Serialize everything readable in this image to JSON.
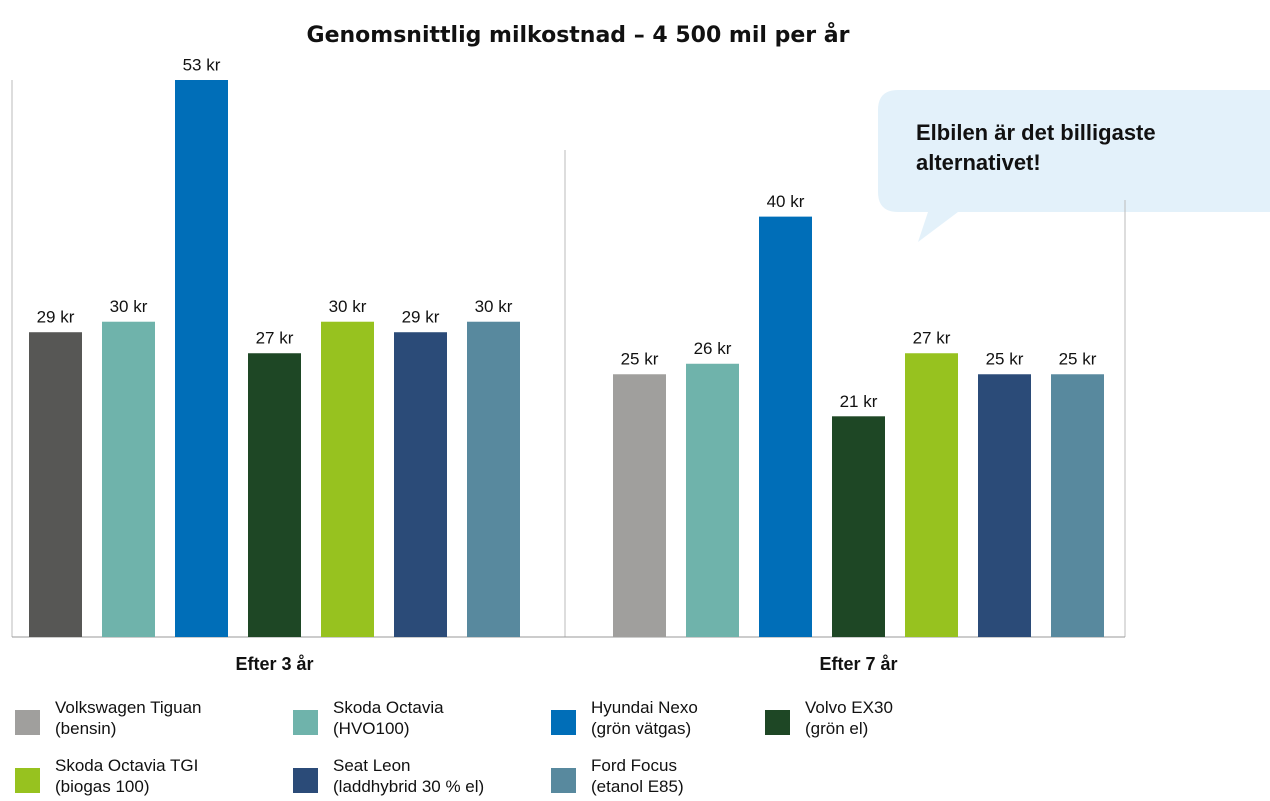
{
  "chart_data": {
    "type": "bar",
    "title": "Genomsnittlig milkostnad – 4 500 mil per år",
    "categories": [
      "Efter 3 år",
      "Efter 7 år"
    ],
    "ylim": [
      0,
      53
    ],
    "annotation": "Elbilen är det billigaste alternativet!",
    "series": [
      {
        "name": "Volkswagen Tiguan\n(bensin)",
        "color": "#a09f9d",
        "bar_colors": [
          "#575755",
          "#a09f9d"
        ],
        "values": [
          29,
          25
        ],
        "value_labels": [
          "29 kr",
          "25 kr"
        ]
      },
      {
        "name": "Skoda Octavia\n(HVO100)",
        "color": "#6fb3ab",
        "values": [
          30,
          26
        ],
        "value_labels": [
          "30 kr",
          "26 kr"
        ]
      },
      {
        "name": "Hyundai Nexo\n(grön vätgas)",
        "color": "#006eb8",
        "values": [
          53,
          40
        ],
        "value_labels": [
          "53 kr",
          "40 kr"
        ]
      },
      {
        "name": "Volvo EX30\n(grön el)",
        "color": "#1e4725",
        "values": [
          27,
          21
        ],
        "value_labels": [
          "27 kr",
          "21 kr"
        ]
      },
      {
        "name": "Skoda Octavia TGI\n(biogas 100)",
        "color": "#97c21f",
        "values": [
          30,
          27
        ],
        "value_labels": [
          "30 kr",
          "27 kr"
        ]
      },
      {
        "name": "Seat Leon\n(laddhybrid 30 % el)",
        "color": "#2b4b78",
        "values": [
          29,
          25
        ],
        "value_labels": [
          "29 kr",
          "25 kr"
        ]
      },
      {
        "name": "Ford Focus\n(etanol E85)",
        "color": "#58899e",
        "values": [
          30,
          25
        ],
        "value_labels": [
          "30 kr",
          "25 kr"
        ]
      }
    ]
  }
}
